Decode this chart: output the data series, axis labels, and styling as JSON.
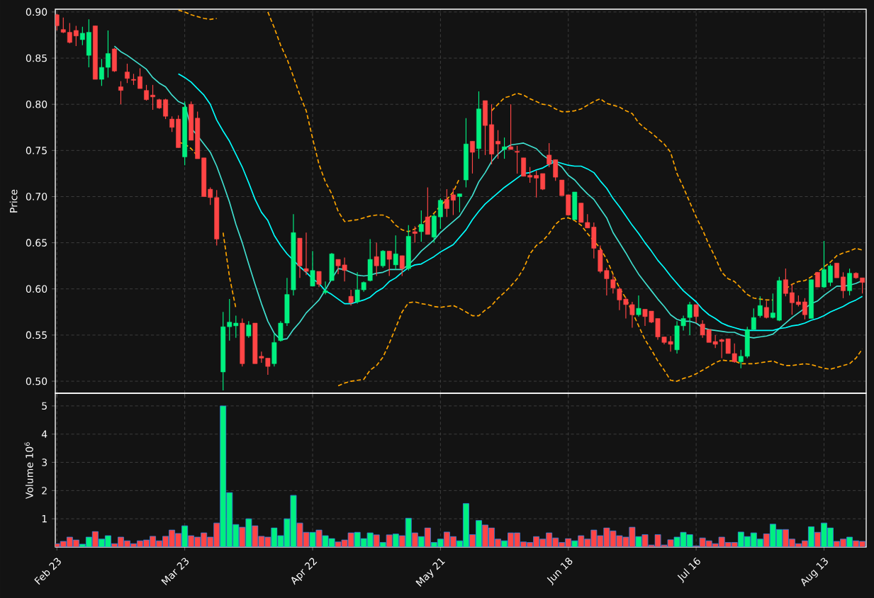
{
  "chart_data": [
    {
      "type": "candlestick",
      "ylabel": "Price",
      "ylim": [
        0.487,
        0.903
      ],
      "grid": true,
      "tick_labels": "y",
      "yticks": [
        {
          "value": 0.5,
          "label": "0.50"
        },
        {
          "value": 0.55,
          "label": "0.55"
        },
        {
          "value": 0.6,
          "label": "0.60"
        },
        {
          "value": 0.65,
          "label": "0.65"
        },
        {
          "value": 0.7,
          "label": "0.70"
        },
        {
          "value": 0.75,
          "label": "0.75"
        },
        {
          "value": 0.8,
          "label": "0.80"
        },
        {
          "value": 0.85,
          "label": "0.85"
        },
        {
          "value": 0.9,
          "label": "0.90"
        }
      ],
      "categories": [
        null,
        null,
        null,
        null,
        null,
        null,
        null,
        null,
        null,
        null,
        null,
        null,
        null,
        null,
        null,
        null,
        null,
        null,
        null,
        null,
        null,
        null,
        null,
        null,
        null,
        null,
        null,
        null,
        null,
        null,
        null,
        null,
        null,
        null,
        null,
        null,
        null,
        null,
        null,
        null,
        null,
        null,
        null,
        null,
        null,
        null,
        null,
        null,
        null,
        null,
        null,
        null,
        null,
        null,
        null,
        null,
        null,
        null,
        null,
        null,
        null,
        null,
        null,
        null,
        null,
        null,
        null,
        null,
        null,
        null,
        null,
        null,
        null,
        null,
        null,
        null,
        null,
        null,
        null,
        null,
        null,
        null,
        null,
        null,
        null,
        null,
        null,
        null,
        null,
        null,
        null,
        null,
        null,
        null,
        null,
        null,
        null,
        null,
        null,
        null,
        null,
        null,
        null,
        null,
        null,
        null,
        null,
        null,
        null,
        null,
        null,
        null,
        null,
        null,
        null,
        null,
        null,
        null,
        null,
        null,
        null,
        null,
        null,
        null,
        null,
        null,
        null
      ],
      "ohlc": [
        [
          0.897,
          0.898,
          0.88,
          0.885
        ],
        [
          0.881,
          0.894,
          0.877,
          0.878
        ],
        [
          0.878,
          0.888,
          0.866,
          0.867
        ],
        [
          0.88,
          0.885,
          0.863,
          0.874
        ],
        [
          0.87,
          0.884,
          0.864,
          0.877
        ],
        [
          0.853,
          0.892,
          0.84,
          0.878
        ],
        [
          0.885,
          0.885,
          0.827,
          0.827
        ],
        [
          0.827,
          0.849,
          0.82,
          0.84
        ],
        [
          0.84,
          0.88,
          0.829,
          0.855
        ],
        [
          0.86,
          0.861,
          0.835,
          0.836
        ],
        [
          0.819,
          0.825,
          0.8,
          0.815
        ],
        [
          0.835,
          0.844,
          0.823,
          0.828
        ],
        [
          0.827,
          0.833,
          0.821,
          0.826
        ],
        [
          0.83,
          0.839,
          0.817,
          0.817
        ],
        [
          0.815,
          0.821,
          0.804,
          0.805
        ],
        [
          0.81,
          0.821,
          0.794,
          0.808
        ],
        [
          0.805,
          0.806,
          0.795,
          0.796
        ],
        [
          0.805,
          0.806,
          0.784,
          0.787
        ],
        [
          0.784,
          0.787,
          0.77,
          0.775
        ],
        [
          0.784,
          0.788,
          0.753,
          0.753
        ],
        [
          0.743,
          0.803,
          0.734,
          0.797
        ],
        [
          0.8,
          0.803,
          0.761,
          0.761
        ],
        [
          0.785,
          0.792,
          0.741,
          0.741
        ],
        [
          0.742,
          0.742,
          0.7,
          0.7
        ],
        [
          0.708,
          0.71,
          0.691,
          0.699
        ],
        [
          0.699,
          0.707,
          0.647,
          0.654
        ],
        [
          0.51,
          0.575,
          0.49,
          0.559
        ],
        [
          0.559,
          0.589,
          0.544,
          0.564
        ],
        [
          0.56,
          0.571,
          0.547,
          0.563
        ],
        [
          0.563,
          0.568,
          0.516,
          0.519
        ],
        [
          0.549,
          0.565,
          0.547,
          0.561
        ],
        [
          0.563,
          0.563,
          0.519,
          0.519
        ],
        [
          0.527,
          0.532,
          0.52,
          0.525
        ],
        [
          0.525,
          0.525,
          0.507,
          0.516
        ],
        [
          0.519,
          0.552,
          0.516,
          0.542
        ],
        [
          0.544,
          0.565,
          0.543,
          0.563
        ],
        [
          0.563,
          0.612,
          0.56,
          0.594
        ],
        [
          0.599,
          0.681,
          0.593,
          0.661
        ],
        [
          0.655,
          0.655,
          0.612,
          0.625
        ],
        [
          0.622,
          0.661,
          0.615,
          0.619
        ],
        [
          0.603,
          0.641,
          0.603,
          0.62
        ],
        [
          0.619,
          0.619,
          0.602,
          0.605
        ],
        [
          0.596,
          0.608,
          0.594,
          0.598
        ],
        [
          0.609,
          0.639,
          0.609,
          0.638
        ],
        [
          0.632,
          0.632,
          0.616,
          0.625
        ],
        [
          0.626,
          0.634,
          0.608,
          0.62
        ],
        [
          0.592,
          0.599,
          0.582,
          0.585
        ],
        [
          0.586,
          0.618,
          0.584,
          0.599
        ],
        [
          0.599,
          0.608,
          0.597,
          0.607
        ],
        [
          0.609,
          0.654,
          0.608,
          0.632
        ],
        [
          0.635,
          0.65,
          0.614,
          0.625
        ],
        [
          0.625,
          0.642,
          0.623,
          0.641
        ],
        [
          0.641,
          0.641,
          0.614,
          0.632
        ],
        [
          0.626,
          0.658,
          0.621,
          0.638
        ],
        [
          0.636,
          0.636,
          0.614,
          0.622
        ],
        [
          0.622,
          0.669,
          0.62,
          0.657
        ],
        [
          0.662,
          0.668,
          0.65,
          0.66
        ],
        [
          0.662,
          0.685,
          0.651,
          0.67
        ],
        [
          0.678,
          0.71,
          0.659,
          0.659
        ],
        [
          0.656,
          0.681,
          0.65,
          0.679
        ],
        [
          0.678,
          0.698,
          0.665,
          0.696
        ],
        [
          0.697,
          0.708,
          0.678,
          0.687
        ],
        [
          0.702,
          0.709,
          0.68,
          0.696
        ],
        [
          0.7,
          0.703,
          0.683,
          0.703
        ],
        [
          0.718,
          0.785,
          0.71,
          0.757
        ],
        [
          0.76,
          0.76,
          0.725,
          0.748
        ],
        [
          0.752,
          0.814,
          0.741,
          0.795
        ],
        [
          0.804,
          0.804,
          0.745,
          0.777
        ],
        [
          0.778,
          0.8,
          0.735,
          0.746
        ],
        [
          0.76,
          0.772,
          0.741,
          0.757
        ],
        [
          0.751,
          0.764,
          0.741,
          0.754
        ],
        [
          0.754,
          0.8,
          0.751,
          0.751
        ],
        [
          0.749,
          0.755,
          0.725,
          0.748
        ],
        [
          0.742,
          0.742,
          0.722,
          0.722
        ],
        [
          0.723,
          0.732,
          0.715,
          0.721
        ],
        [
          0.723,
          0.728,
          0.699,
          0.72
        ],
        [
          0.725,
          0.725,
          0.707,
          0.708
        ],
        [
          0.745,
          0.758,
          0.732,
          0.735
        ],
        [
          0.74,
          0.74,
          0.717,
          0.721
        ],
        [
          0.718,
          0.718,
          0.701,
          0.701
        ],
        [
          0.702,
          0.702,
          0.68,
          0.68
        ],
        [
          0.675,
          0.705,
          0.675,
          0.705
        ],
        [
          0.693,
          0.693,
          0.672,
          0.672
        ],
        [
          0.672,
          0.681,
          0.666,
          0.666
        ],
        [
          0.667,
          0.672,
          0.633,
          0.644
        ],
        [
          0.642,
          0.647,
          0.617,
          0.619
        ],
        [
          0.62,
          0.623,
          0.593,
          0.611
        ],
        [
          0.61,
          0.615,
          0.595,
          0.601
        ],
        [
          0.6,
          0.602,
          0.577,
          0.588
        ],
        [
          0.589,
          0.591,
          0.568,
          0.583
        ],
        [
          0.583,
          0.586,
          0.558,
          0.572
        ],
        [
          0.572,
          0.593,
          0.57,
          0.579
        ],
        [
          0.578,
          0.578,
          0.56,
          0.57
        ],
        [
          0.576,
          0.576,
          0.563,
          0.564
        ],
        [
          0.568,
          0.568,
          0.545,
          0.548
        ],
        [
          0.548,
          0.548,
          0.54,
          0.542
        ],
        [
          0.543,
          0.549,
          0.532,
          0.54
        ],
        [
          0.534,
          0.565,
          0.53,
          0.56
        ],
        [
          0.56,
          0.571,
          0.555,
          0.568
        ],
        [
          0.569,
          0.586,
          0.55,
          0.583
        ],
        [
          0.583,
          0.583,
          0.563,
          0.57
        ],
        [
          0.562,
          0.566,
          0.547,
          0.55
        ],
        [
          0.556,
          0.556,
          0.542,
          0.542
        ],
        [
          0.543,
          0.55,
          0.536,
          0.54
        ],
        [
          0.545,
          0.546,
          0.525,
          0.543
        ],
        [
          0.546,
          0.546,
          0.53,
          0.53
        ],
        [
          0.53,
          0.541,
          0.52,
          0.521
        ],
        [
          0.521,
          0.534,
          0.514,
          0.527
        ],
        [
          0.527,
          0.559,
          0.525,
          0.556
        ],
        [
          0.556,
          0.579,
          0.555,
          0.569
        ],
        [
          0.571,
          0.592,
          0.569,
          0.582
        ],
        [
          0.58,
          0.587,
          0.568,
          0.569
        ],
        [
          0.569,
          0.595,
          0.568,
          0.574
        ],
        [
          0.566,
          0.613,
          0.565,
          0.609
        ],
        [
          0.61,
          0.622,
          0.592,
          0.595
        ],
        [
          0.596,
          0.605,
          0.572,
          0.585
        ],
        [
          0.586,
          0.593,
          0.581,
          0.583
        ],
        [
          0.586,
          0.59,
          0.567,
          0.572
        ],
        [
          0.568,
          0.61,
          0.568,
          0.61
        ],
        [
          0.618,
          0.618,
          0.602,
          0.602
        ],
        [
          0.602,
          0.652,
          0.601,
          0.621
        ],
        [
          0.607,
          0.627,
          0.603,
          0.625
        ],
        [
          0.628,
          0.628,
          0.612,
          0.612
        ],
        [
          0.613,
          0.618,
          0.59,
          0.598
        ],
        [
          0.598,
          0.622,
          0.593,
          0.617
        ],
        [
          0.617,
          0.618,
          0.611,
          0.612
        ],
        [
          0.612,
          0.612,
          0.595,
          0.607
        ]
      ],
      "colors": [
        "#ff4545",
        "#ff4545",
        "#ff4545",
        "#ff4545",
        "#00f080",
        "#00f080",
        "#ff4545",
        "#00f080",
        "#00f080",
        "#ff4545",
        "#ff4545",
        "#ff4545",
        "#ff4545",
        "#ff4545",
        "#ff4545",
        "#ff4545",
        "#ff4545",
        "#ff4545",
        "#ff4545",
        "#ff4545",
        "#00f080",
        "#ff4545",
        "#ff4545",
        "#ff4545",
        "#ff4545",
        "#ff4545",
        "#00f080",
        "#00f080",
        "#00f080",
        "#ff4545",
        "#00f080",
        "#ff4545",
        "#ff4545",
        "#ff4545",
        "#00f080",
        "#00f080",
        "#00f080",
        "#00f080",
        "#ff4545",
        "#ff4545",
        "#00f080",
        "#ff4545",
        "#00f080",
        "#00f080",
        "#ff4545",
        "#ff4545",
        "#ff4545",
        "#00f080",
        "#00f080",
        "#00f080",
        "#ff4545",
        "#00f080",
        "#ff4545",
        "#00f080",
        "#ff4545",
        "#00f080",
        "#ff4545",
        "#00f080",
        "#ff4545",
        "#00f080",
        "#00f080",
        "#ff4545",
        "#ff4545",
        "#00f080",
        "#00f080",
        "#ff4545",
        "#00f080",
        "#ff4545",
        "#ff4545",
        "#ff4545",
        "#00f080",
        "#ff4545",
        "#ff4545",
        "#ff4545",
        "#ff4545",
        "#ff4545",
        "#ff4545",
        "#ff4545",
        "#ff4545",
        "#ff4545",
        "#ff4545",
        "#00f080",
        "#ff4545",
        "#ff4545",
        "#ff4545",
        "#ff4545",
        "#ff4545",
        "#ff4545",
        "#ff4545",
        "#ff4545",
        "#ff4545",
        "#00f080",
        "#ff4545",
        "#ff4545",
        "#ff4545",
        "#ff4545",
        "#ff4545",
        "#00f080",
        "#00f080",
        "#00f080",
        "#ff4545",
        "#ff4545",
        "#ff4545",
        "#ff4545",
        "#ff4545",
        "#ff4545",
        "#ff4545",
        "#00f080",
        "#00f080",
        "#00f080",
        "#00f080",
        "#ff4545",
        "#00f080",
        "#00f080",
        "#ff4545",
        "#ff4545",
        "#ff4545",
        "#ff4545",
        "#00f080",
        "#ff4545",
        "#00f080",
        "#00f080",
        "#ff4545",
        "#ff4545",
        "#00f080",
        "#ff4545",
        "#ff4545"
      ],
      "series": [
        {
          "type": "line",
          "color": "#40e0d0",
          "line_style": "solid",
          "values": [
            null,
            null,
            null,
            null,
            null,
            null,
            null,
            null,
            null,
            0.863,
            0.857,
            0.853,
            0.848,
            0.843,
            0.838,
            0.829,
            0.823,
            0.819,
            0.81,
            0.803,
            0.8,
            0.774,
            0.766,
            0.757,
            0.748,
            0.733,
            0.714,
            0.694,
            0.67,
            0.65,
            0.627,
            0.605,
            0.584,
            0.565,
            0.552,
            0.545,
            0.546,
            0.556,
            0.564,
            0.574,
            0.581,
            0.588,
            0.599,
            0.611,
            0.622,
            0.621,
            0.618,
            0.615,
            0.614,
            0.615,
            0.617,
            0.618,
            0.621,
            0.621,
            0.621,
            0.626,
            0.633,
            0.641,
            0.647,
            0.653,
            0.661,
            0.667,
            0.673,
            0.679,
            0.69,
            0.701,
            0.716,
            0.726,
            0.738,
            0.746,
            0.752,
            0.756,
            0.757,
            0.758,
            0.755,
            0.752,
            0.745,
            0.74,
            0.737,
            0.732,
            0.723,
            0.718,
            0.71,
            0.703,
            0.697,
            0.687,
            0.677,
            0.661,
            0.65,
            0.639,
            0.627,
            0.616,
            0.607,
            0.598,
            0.589,
            0.581,
            0.572,
            0.567,
            0.565,
            0.565,
            0.563,
            0.558,
            0.556,
            0.555,
            0.554,
            0.553,
            0.553,
            0.55,
            0.548,
            0.547,
            0.548,
            0.549,
            0.551,
            0.557,
            0.563,
            0.569,
            0.574,
            0.579,
            0.584,
            0.587,
            0.593,
            0.598,
            0.603,
            0.603,
            0.604,
            0.606,
            0.609
          ]
        },
        {
          "type": "line",
          "color": "#00ffff",
          "line_style": "solid",
          "values": [
            null,
            null,
            null,
            null,
            null,
            null,
            null,
            null,
            null,
            null,
            null,
            null,
            null,
            null,
            null,
            null,
            null,
            null,
            null,
            0.833,
            0.829,
            0.824,
            0.817,
            0.81,
            0.8,
            0.783,
            0.771,
            0.76,
            0.746,
            0.732,
            0.715,
            0.697,
            0.683,
            0.674,
            0.658,
            0.647,
            0.638,
            0.631,
            0.624,
            0.618,
            0.611,
            0.606,
            0.598,
            0.594,
            0.589,
            0.584,
            0.584,
            0.586,
            0.588,
            0.591,
            0.597,
            0.601,
            0.608,
            0.612,
            0.618,
            0.623,
            0.626,
            0.627,
            0.631,
            0.635,
            0.64,
            0.644,
            0.648,
            0.656,
            0.664,
            0.675,
            0.684,
            0.692,
            0.698,
            0.704,
            0.71,
            0.715,
            0.72,
            0.725,
            0.726,
            0.729,
            0.731,
            0.735,
            0.738,
            0.736,
            0.734,
            0.733,
            0.733,
            0.73,
            0.726,
            0.717,
            0.709,
            0.698,
            0.689,
            0.679,
            0.669,
            0.66,
            0.65,
            0.641,
            0.631,
            0.623,
            0.614,
            0.606,
            0.598,
            0.592,
            0.586,
            0.578,
            0.572,
            0.568,
            0.563,
            0.56,
            0.558,
            0.556,
            0.555,
            0.555,
            0.555,
            0.555,
            0.555,
            0.557,
            0.558,
            0.56,
            0.561,
            0.563,
            0.566,
            0.568,
            0.571,
            0.575,
            0.578,
            0.581,
            0.585,
            0.588,
            0.592
          ]
        },
        {
          "type": "line",
          "color": "#ffa500",
          "line_style": "dashed",
          "values": [
            null,
            null,
            null,
            null,
            null,
            null,
            null,
            null,
            null,
            null,
            null,
            null,
            null,
            null,
            null,
            null,
            null,
            null,
            null,
            0.902,
            0.9,
            0.897,
            0.895,
            0.893,
            0.892,
            0.893,
            null,
            null,
            null,
            null,
            null,
            null,
            null,
            0.9,
            0.883,
            0.864,
            0.849,
            0.83,
            0.81,
            0.793,
            0.763,
            0.735,
            0.716,
            0.703,
            0.684,
            0.673,
            0.674,
            0.675,
            0.677,
            0.679,
            0.68,
            0.68,
            0.677,
            0.669,
            0.664,
            0.662,
            0.665,
            0.67,
            0.676,
            0.682,
            0.69,
            0.697,
            0.705,
            0.72,
            null,
            null,
            null,
            null,
            0.793,
            0.8,
            0.807,
            0.809,
            0.812,
            0.81,
            0.806,
            0.803,
            0.8,
            0.799,
            0.795,
            0.792,
            0.792,
            0.793,
            0.795,
            0.799,
            0.803,
            0.806,
            0.801,
            0.799,
            0.797,
            0.793,
            0.79,
            0.78,
            0.774,
            0.769,
            0.763,
            0.757,
            0.748,
            0.725,
            0.71,
            0.694,
            0.678,
            0.664,
            0.648,
            0.634,
            0.618,
            0.611,
            0.608,
            0.601,
            0.594,
            0.59,
            0.589,
            0.588,
            0.588,
            null,
            0.6,
            0.605,
            0.608,
            0.609,
            0.613,
            0.618,
            0.624,
            0.629,
            0.636,
            0.639,
            0.641,
            0.644,
            0.642
          ]
        },
        {
          "type": "line",
          "color": "#ffa500",
          "line_style": "dashed",
          "values": [
            null,
            null,
            null,
            null,
            null,
            null,
            null,
            null,
            null,
            null,
            null,
            null,
            null,
            null,
            null,
            null,
            null,
            null,
            null,
            0.759,
            0.757,
            0.752,
            0.744,
            null,
            null,
            null,
            0.661,
            0.613,
            0.579,
            null,
            null,
            null,
            null,
            null,
            null,
            null,
            null,
            null,
            null,
            null,
            null,
            null,
            null,
            null,
            0.495,
            0.498,
            0.5,
            0.501,
            0.502,
            0.512,
            0.517,
            0.526,
            0.541,
            0.558,
            0.575,
            0.585,
            0.586,
            0.584,
            0.583,
            0.581,
            0.58,
            0.581,
            0.582,
            0.579,
            0.575,
            0.571,
            0.571,
            0.577,
            0.582,
            0.59,
            0.596,
            0.603,
            0.611,
            0.622,
            0.638,
            0.647,
            0.652,
            0.66,
            0.67,
            0.676,
            0.677,
            0.674,
            0.669,
            0.66,
            0.652,
            0.644,
            0.632,
            0.616,
            0.601,
            0.59,
            0.575,
            0.56,
            0.545,
            0.534,
            0.522,
            0.512,
            0.501,
            0.5,
            0.503,
            0.505,
            0.508,
            0.512,
            0.516,
            0.52,
            0.523,
            0.522,
            0.522,
            0.519,
            0.519,
            0.519,
            0.52,
            0.521,
            0.522,
            0.519,
            0.517,
            0.517,
            0.518,
            0.519,
            0.518,
            0.516,
            0.514,
            0.513,
            0.515,
            0.517,
            0.519,
            0.525,
            0.535
          ]
        }
      ]
    },
    {
      "type": "bar",
      "ylabel": "Volume  10$^{6}$",
      "ylim": [
        0,
        5.45
      ],
      "yticks": [
        1,
        2,
        3,
        4,
        5
      ],
      "grid": true,
      "categories": [
        "Feb 23",
        null,
        null,
        null,
        null,
        null,
        null,
        null,
        null,
        null,
        null,
        null,
        null,
        null,
        null,
        null,
        null,
        null,
        null,
        null,
        "Mar 23",
        null,
        null,
        null,
        null,
        null,
        null,
        null,
        null,
        null,
        null,
        null,
        null,
        null,
        null,
        null,
        null,
        null,
        null,
        null,
        "Apr 22",
        null,
        null,
        null,
        null,
        null,
        null,
        null,
        null,
        null,
        null,
        null,
        null,
        null,
        null,
        null,
        null,
        null,
        null,
        null,
        "May 21",
        null,
        null,
        null,
        null,
        null,
        null,
        null,
        null,
        null,
        null,
        null,
        null,
        null,
        null,
        null,
        null,
        null,
        null,
        null,
        "Jun 18",
        null,
        null,
        null,
        null,
        null,
        null,
        null,
        null,
        null,
        null,
        null,
        null,
        null,
        null,
        null,
        null,
        null,
        null,
        null,
        "Jul 16",
        null,
        null,
        null,
        null,
        null,
        null,
        null,
        null,
        null,
        null,
        null,
        null,
        null,
        null,
        null,
        null,
        null,
        null,
        null,
        "Aug 13",
        null,
        null,
        null,
        null,
        null,
        null
      ],
      "values": [
        0.12,
        0.2,
        0.35,
        0.25,
        0.1,
        0.35,
        0.55,
        0.28,
        0.4,
        0.12,
        0.35,
        0.22,
        0.12,
        0.22,
        0.25,
        0.38,
        0.22,
        0.38,
        0.6,
        0.48,
        0.75,
        0.4,
        0.35,
        0.5,
        0.35,
        0.85,
        5.0,
        1.93,
        0.8,
        0.7,
        1.0,
        0.75,
        0.38,
        0.35,
        0.68,
        0.4,
        1.0,
        1.83,
        0.85,
        0.52,
        0.52,
        0.6,
        0.4,
        0.3,
        0.18,
        0.25,
        0.5,
        0.52,
        0.3,
        0.5,
        0.43,
        0.16,
        0.43,
        0.46,
        0.4,
        1.02,
        0.5,
        0.37,
        0.68,
        0.16,
        0.28,
        0.53,
        0.37,
        0.22,
        1.54,
        0.44,
        0.94,
        0.78,
        0.68,
        0.28,
        0.22,
        0.5,
        0.5,
        0.18,
        0.16,
        0.37,
        0.28,
        0.5,
        0.32,
        0.16,
        0.3,
        0.22,
        0.4,
        0.28,
        0.6,
        0.4,
        0.68,
        0.57,
        0.4,
        0.35,
        0.7,
        0.37,
        0.44,
        0.07,
        0.44,
        0.07,
        0.26,
        0.35,
        0.52,
        0.44,
        0.04,
        0.32,
        0.22,
        0.12,
        0.35,
        0.16,
        0.16,
        0.53,
        0.37,
        0.5,
        0.28,
        0.47,
        0.81,
        0.62,
        0.62,
        0.28,
        0.12,
        0.22,
        0.72,
        0.52,
        0.85,
        0.68,
        0.2,
        0.28,
        0.35,
        0.22,
        0.2
      ],
      "colors": [
        "#ff4545",
        "#ff4545",
        "#ff4545",
        "#ff4545",
        "#00f080",
        "#00f080",
        "#ff4545",
        "#00f080",
        "#00f080",
        "#ff4545",
        "#ff4545",
        "#ff4545",
        "#ff4545",
        "#ff4545",
        "#ff4545",
        "#ff4545",
        "#ff4545",
        "#ff4545",
        "#ff4545",
        "#ff4545",
        "#00f080",
        "#ff4545",
        "#ff4545",
        "#ff4545",
        "#ff4545",
        "#ff4545",
        "#00f080",
        "#00f080",
        "#00f080",
        "#ff4545",
        "#00f080",
        "#ff4545",
        "#ff4545",
        "#ff4545",
        "#00f080",
        "#00f080",
        "#00f080",
        "#00f080",
        "#ff4545",
        "#ff4545",
        "#00f080",
        "#ff4545",
        "#00f080",
        "#00f080",
        "#ff4545",
        "#ff4545",
        "#ff4545",
        "#00f080",
        "#00f080",
        "#00f080",
        "#ff4545",
        "#00f080",
        "#ff4545",
        "#00f080",
        "#ff4545",
        "#00f080",
        "#ff4545",
        "#00f080",
        "#ff4545",
        "#00f080",
        "#00f080",
        "#ff4545",
        "#ff4545",
        "#00f080",
        "#00f080",
        "#ff4545",
        "#00f080",
        "#ff4545",
        "#ff4545",
        "#ff4545",
        "#00f080",
        "#ff4545",
        "#ff4545",
        "#ff4545",
        "#ff4545",
        "#ff4545",
        "#ff4545",
        "#ff4545",
        "#ff4545",
        "#ff4545",
        "#ff4545",
        "#00f080",
        "#ff4545",
        "#ff4545",
        "#ff4545",
        "#ff4545",
        "#ff4545",
        "#ff4545",
        "#ff4545",
        "#ff4545",
        "#ff4545",
        "#00f080",
        "#ff4545",
        "#ff4545",
        "#ff4545",
        "#ff4545",
        "#ff4545",
        "#00f080",
        "#00f080",
        "#00f080",
        "#ff4545",
        "#ff4545",
        "#ff4545",
        "#ff4545",
        "#ff4545",
        "#ff4545",
        "#ff4545",
        "#00f080",
        "#00f080",
        "#00f080",
        "#00f080",
        "#ff4545",
        "#00f080",
        "#00f080",
        "#ff4545",
        "#ff4545",
        "#ff4545",
        "#ff4545",
        "#00f080",
        "#ff4545",
        "#00f080",
        "#00f080",
        "#ff4545",
        "#ff4545",
        "#00f080",
        "#ff4545",
        "#ff4545"
      ]
    }
  ]
}
